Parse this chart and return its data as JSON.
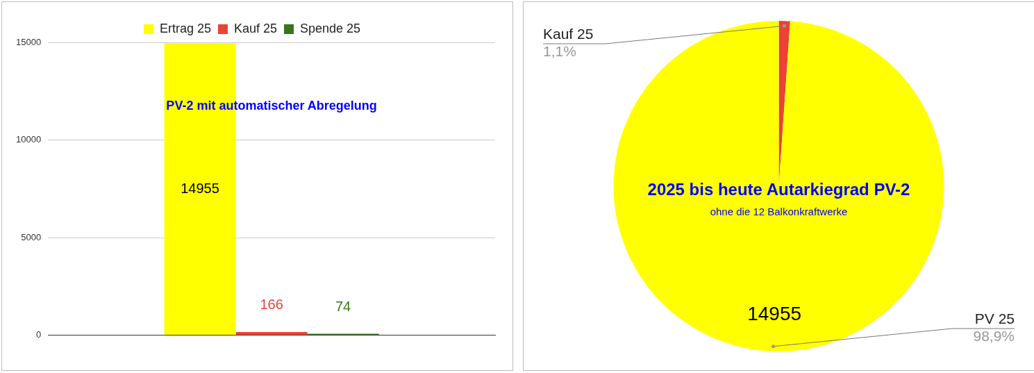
{
  "chart_data": [
    {
      "type": "bar",
      "categories": [
        null
      ],
      "series": [
        {
          "name": "Ertrag 25",
          "color": "#ffff00",
          "values": [
            14955
          ]
        },
        {
          "name": "Kauf 25",
          "color": "#ea4335",
          "values": [
            166
          ]
        },
        {
          "name": "Spende 25",
          "color": "#38761d",
          "values": [
            74
          ]
        }
      ],
      "ylim": [
        0,
        15000
      ],
      "yticks": [
        0,
        5000,
        10000,
        15000
      ],
      "grid": "y",
      "legend": "top",
      "data_labels": true,
      "annotations": [
        "PV-2 mit automatischer Abregelung"
      ]
    },
    {
      "type": "pie",
      "title": "2025 bis heute Autarkiegrad PV-2",
      "subtitle": "ohne die 12 Balkonkraftwerke",
      "categories": [
        "Kauf 25",
        "PV 25"
      ],
      "values": [
        166,
        14955
      ],
      "colors": [
        "#ea4335",
        "#ffff00"
      ],
      "value_labels": [
        null,
        "14955"
      ],
      "annotations": [
        "1,1%",
        "98,9%"
      ]
    }
  ]
}
